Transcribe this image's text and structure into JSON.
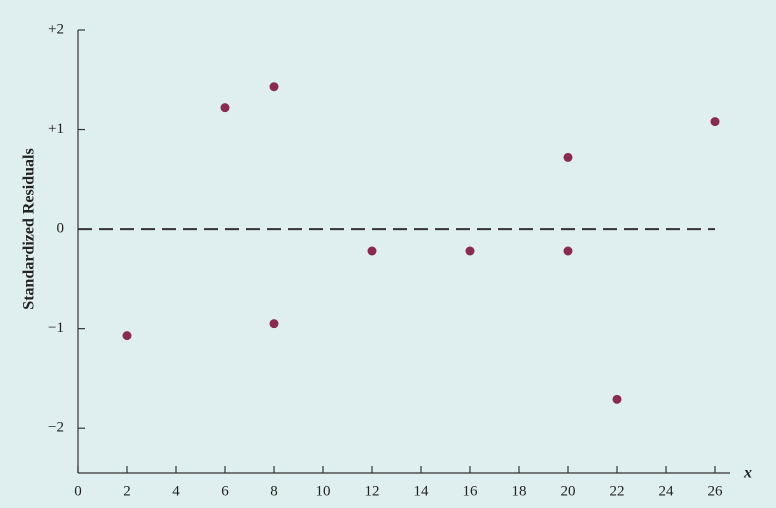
{
  "chart_data": {
    "type": "scatter",
    "y_label": "Standardized Residuals",
    "x_label": "x",
    "x": [
      2,
      6,
      8,
      8,
      12,
      16,
      20,
      20,
      22,
      26
    ],
    "values": [
      -1.07,
      1.22,
      1.43,
      -0.95,
      -0.22,
      -0.22,
      0.72,
      -0.22,
      -1.71,
      1.08
    ],
    "color": "#8b2a50",
    "xlim": [
      0,
      26
    ],
    "xticks": [
      0,
      2,
      4,
      6,
      8,
      10,
      12,
      14,
      16,
      18,
      20,
      22,
      24,
      26
    ],
    "ylim": [
      -2.45,
      2
    ],
    "yticks": [
      {
        "value": -2,
        "label": "−2"
      },
      {
        "value": -1,
        "label": "−1"
      },
      0,
      {
        "value": 1,
        "label": "+1"
      },
      {
        "value": 2,
        "label": "+2"
      }
    ],
    "reference_line": 0
  }
}
